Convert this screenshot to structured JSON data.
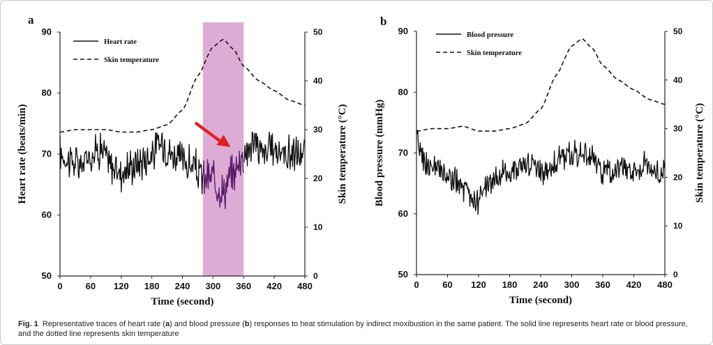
{
  "caption": {
    "label": "Fig. 1",
    "parts": [
      "Representative traces of heart rate (",
      "a",
      ") and blood pressure (",
      "b",
      ") responses to heat stimulation by indirect moxibustion in the same patient. The solid line represents heart rate or blood pressure, and the dotted line represents skin temperature"
    ]
  },
  "chart_data": [
    {
      "panel_label": "a",
      "type": "line",
      "xlabel": "Time (second)",
      "ylabel": "Heart rate (beats/min)",
      "y2label": "Skin temperature (°C)",
      "xlim": [
        0,
        480
      ],
      "ylim": [
        50,
        90
      ],
      "y2lim": [
        0,
        50
      ],
      "xticks": [
        "0",
        "60",
        "120",
        "180",
        "240",
        "300",
        "360",
        "420",
        "480"
      ],
      "yticks": [
        "50",
        "60",
        "70",
        "80",
        "90"
      ],
      "y2ticks": [
        "0",
        "10",
        "20",
        "30",
        "40",
        "50"
      ],
      "legend_position": "top-left",
      "highlight": {
        "x_range": [
          280,
          360
        ],
        "color": "#d9a3cf"
      },
      "arrow": {
        "from": [
          240,
          75
        ],
        "to": [
          330,
          70
        ],
        "color": "#e02020"
      },
      "series": [
        {
          "name": "Heart rate",
          "axis": "left",
          "style": "solid",
          "color": "#111111",
          "highlight_color": "#5a1a6a",
          "x": [
            0,
            20,
            40,
            60,
            80,
            100,
            120,
            140,
            160,
            180,
            200,
            220,
            240,
            260,
            280,
            300,
            320,
            340,
            360,
            380,
            400,
            420,
            440,
            460,
            480
          ],
          "values": [
            70,
            69,
            68,
            70,
            71,
            68,
            67,
            68,
            69,
            70,
            72,
            70,
            69,
            68,
            66,
            66,
            64,
            67,
            70,
            72,
            70,
            71,
            70,
            70,
            70
          ],
          "noise_amplitude": 2.5
        },
        {
          "name": "Skin temperature",
          "axis": "right",
          "style": "dashed",
          "color": "#111111",
          "x": [
            0,
            30,
            60,
            90,
            120,
            150,
            180,
            210,
            240,
            270,
            300,
            320,
            340,
            360,
            390,
            420,
            450,
            480
          ],
          "values": [
            29.5,
            30,
            30,
            30,
            29.5,
            29.5,
            30,
            31,
            34,
            41,
            47,
            48.5,
            46.5,
            43,
            40,
            38,
            36,
            35
          ]
        }
      ]
    },
    {
      "panel_label": "b",
      "type": "line",
      "xlabel": "Time (second)",
      "ylabel": "Blood pressure (mmHg)",
      "y2label": "Skin temperature (°C)",
      "xlim": [
        0,
        480
      ],
      "ylim": [
        50,
        90
      ],
      "y2lim": [
        0,
        50
      ],
      "xticks": [
        "0",
        "60",
        "120",
        "180",
        "240",
        "300",
        "360",
        "420",
        "480"
      ],
      "yticks": [
        "50",
        "60",
        "70",
        "80",
        "90"
      ],
      "y2ticks": [
        "0",
        "10",
        "20",
        "30",
        "40",
        "50"
      ],
      "legend_position": "top-left",
      "series": [
        {
          "name": "Blood pressure",
          "axis": "left",
          "style": "solid",
          "color": "#111111",
          "x": [
            0,
            20,
            40,
            60,
            80,
            100,
            120,
            140,
            160,
            180,
            200,
            220,
            240,
            260,
            280,
            300,
            320,
            340,
            360,
            380,
            400,
            420,
            440,
            460,
            480
          ],
          "values": [
            72,
            68,
            67,
            66,
            65,
            63,
            62,
            65,
            66,
            67,
            68,
            68,
            67,
            68,
            69,
            70,
            70,
            69,
            67,
            67,
            68,
            67,
            68,
            67,
            67
          ],
          "noise_amplitude": 1.8
        },
        {
          "name": "Skin temperature",
          "axis": "right",
          "style": "dashed",
          "color": "#111111",
          "x": [
            0,
            30,
            60,
            90,
            120,
            150,
            180,
            210,
            240,
            270,
            300,
            320,
            340,
            360,
            390,
            420,
            450,
            480
          ],
          "values": [
            29.5,
            30,
            30,
            30.5,
            29.5,
            29.5,
            30,
            31,
            34,
            41,
            47,
            48.5,
            46.5,
            43,
            40,
            38,
            36,
            35
          ]
        }
      ]
    }
  ]
}
